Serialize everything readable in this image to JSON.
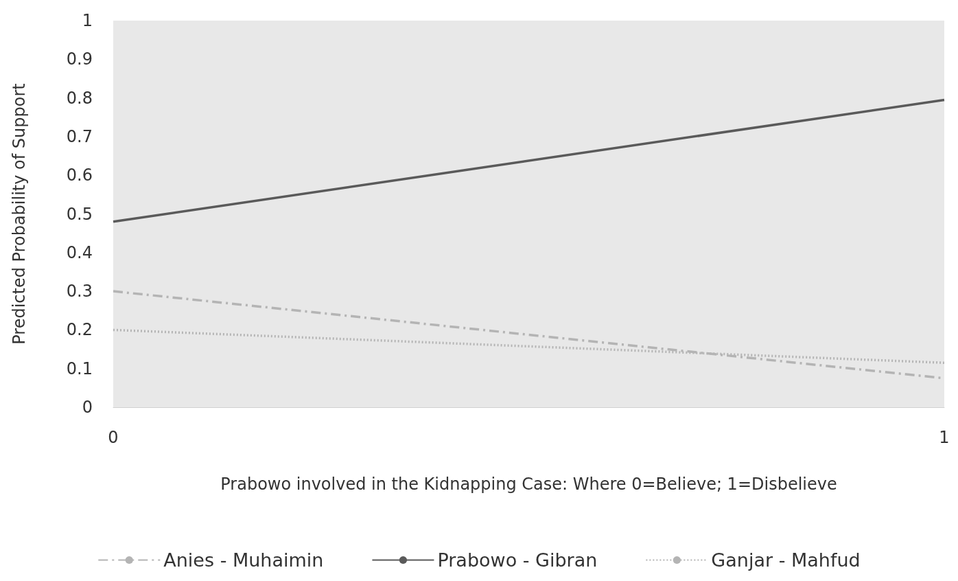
{
  "chart_data": {
    "type": "line",
    "xlabel": "Prabowo involved in the Kidnapping Case: Where 0=Believe; 1=Disbelieve",
    "ylabel": "Predicted Probability of Support",
    "x": [
      0,
      1
    ],
    "xlim": [
      0,
      1
    ],
    "xticks": [
      0,
      1
    ],
    "ylim": [
      0,
      1
    ],
    "yticks": [
      0,
      0.1,
      0.2,
      0.3,
      0.4,
      0.5,
      0.6,
      0.7,
      0.8,
      0.9,
      1
    ],
    "grid": false,
    "legend": "bottom",
    "marker": "none",
    "series": [
      {
        "name": "Anies - Muhaimin",
        "color": "#b4b4b4",
        "line_style": "dashdot",
        "values": [
          0.3,
          0.075
        ]
      },
      {
        "name": "Prabowo - Gibran",
        "color": "#5a5a5a",
        "line_style": "solid",
        "values": [
          0.48,
          0.795
        ]
      },
      {
        "name": "Ganjar - Mahfud",
        "color": "#b4b4b4",
        "line_style": "dotted",
        "values": [
          0.2,
          0.115
        ]
      }
    ]
  }
}
